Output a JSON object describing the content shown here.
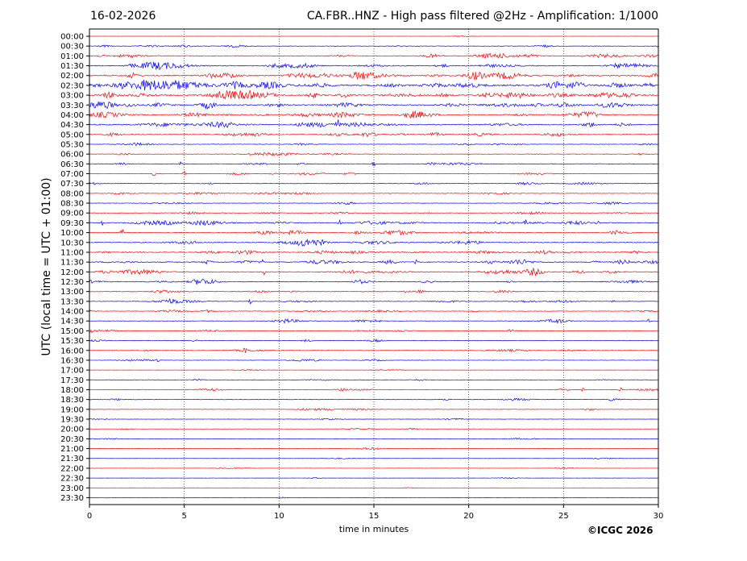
{
  "header": {
    "date": "16-02-2026",
    "title": "CA.FBR..HNZ - High pass filtered @2Hz - Amplification: 1/1000"
  },
  "footer": {
    "copyright": "©ICGC 2026"
  },
  "colors": {
    "trace_a": "#ff0000",
    "trace_b": "#0000ff",
    "grid": "#000000"
  },
  "chart_data": {
    "type": "line",
    "xlabel": "time in minutes",
    "ylabel": "UTC (local time = UTC + 01:00)",
    "xlim": [
      0,
      30
    ],
    "xticks": [
      0,
      5,
      10,
      15,
      20,
      25,
      30
    ],
    "grid": "vertical dotted at 5-minute intervals",
    "row_labels": [
      "00:00",
      "00:30",
      "01:00",
      "01:30",
      "02:00",
      "02:30",
      "03:00",
      "03:30",
      "04:00",
      "04:30",
      "05:00",
      "05:30",
      "06:00",
      "06:30",
      "07:00",
      "07:30",
      "08:00",
      "08:30",
      "09:00",
      "09:30",
      "10:00",
      "10:30",
      "11:00",
      "11:30",
      "12:00",
      "12:30",
      "13:00",
      "13:30",
      "14:00",
      "14:30",
      "15:00",
      "15:30",
      "16:00",
      "16:30",
      "17:00",
      "17:30",
      "18:00",
      "18:30",
      "19:00",
      "19:30",
      "20:00",
      "20:30",
      "21:00",
      "21:30",
      "22:00",
      "22:30",
      "23:00",
      "23:30"
    ],
    "row_colors": [
      "red",
      "blue"
    ],
    "row_activity": [
      0.2,
      1.0,
      1.6,
      2.0,
      2.6,
      3.4,
      3.0,
      2.6,
      2.4,
      2.2,
      1.6,
      1.0,
      0.9,
      1.0,
      0.9,
      0.9,
      0.9,
      0.9,
      1.0,
      1.8,
      1.6,
      1.8,
      2.0,
      2.0,
      1.8,
      1.6,
      1.3,
      1.1,
      1.1,
      1.0,
      0.9,
      0.8,
      0.8,
      0.7,
      0.3,
      0.7,
      1.0,
      0.8,
      0.6,
      0.5,
      0.5,
      0.4,
      0.3,
      0.3,
      0.3,
      0.3,
      0.2,
      0.3
    ],
    "events": [
      {
        "row": 1,
        "minute": 30.0,
        "amp": 2.0
      },
      {
        "row": 3,
        "minute": 27.8,
        "amp": 2.5
      },
      {
        "row": 9,
        "minute": 13.1,
        "amp": 5.0
      },
      {
        "row": 13,
        "minute": 4.8,
        "amp": 4.0
      },
      {
        "row": 13,
        "minute": 15.0,
        "amp": 6.0
      },
      {
        "row": 14,
        "minute": 3.4,
        "amp": 3.0
      },
      {
        "row": 14,
        "minute": 5.0,
        "amp": 3.0
      },
      {
        "row": 19,
        "minute": 0.7,
        "amp": 3.0
      },
      {
        "row": 19,
        "minute": 13.2,
        "amp": 3.0
      },
      {
        "row": 19,
        "minute": 23.0,
        "amp": 4.0
      },
      {
        "row": 19,
        "minute": 26.8,
        "amp": 4.0
      },
      {
        "row": 20,
        "minute": 1.7,
        "amp": 6.0
      },
      {
        "row": 23,
        "minute": 9.1,
        "amp": 4.0
      },
      {
        "row": 23,
        "minute": 17.2,
        "amp": 4.0
      },
      {
        "row": 24,
        "minute": 9.2,
        "amp": 6.0
      },
      {
        "row": 27,
        "minute": 8.5,
        "amp": 3.0
      },
      {
        "row": 27,
        "minute": 27.6,
        "amp": 3.0
      },
      {
        "row": 29,
        "minute": 29.5,
        "amp": 3.0
      },
      {
        "row": 30,
        "minute": 0.1,
        "amp": 3.0
      },
      {
        "row": 32,
        "minute": 8.2,
        "amp": 3.0
      },
      {
        "row": 33,
        "minute": 3.6,
        "amp": 4.0
      },
      {
        "row": 36,
        "minute": 26.0,
        "amp": 3.0
      },
      {
        "row": 36,
        "minute": 28.0,
        "amp": 3.0
      }
    ]
  }
}
